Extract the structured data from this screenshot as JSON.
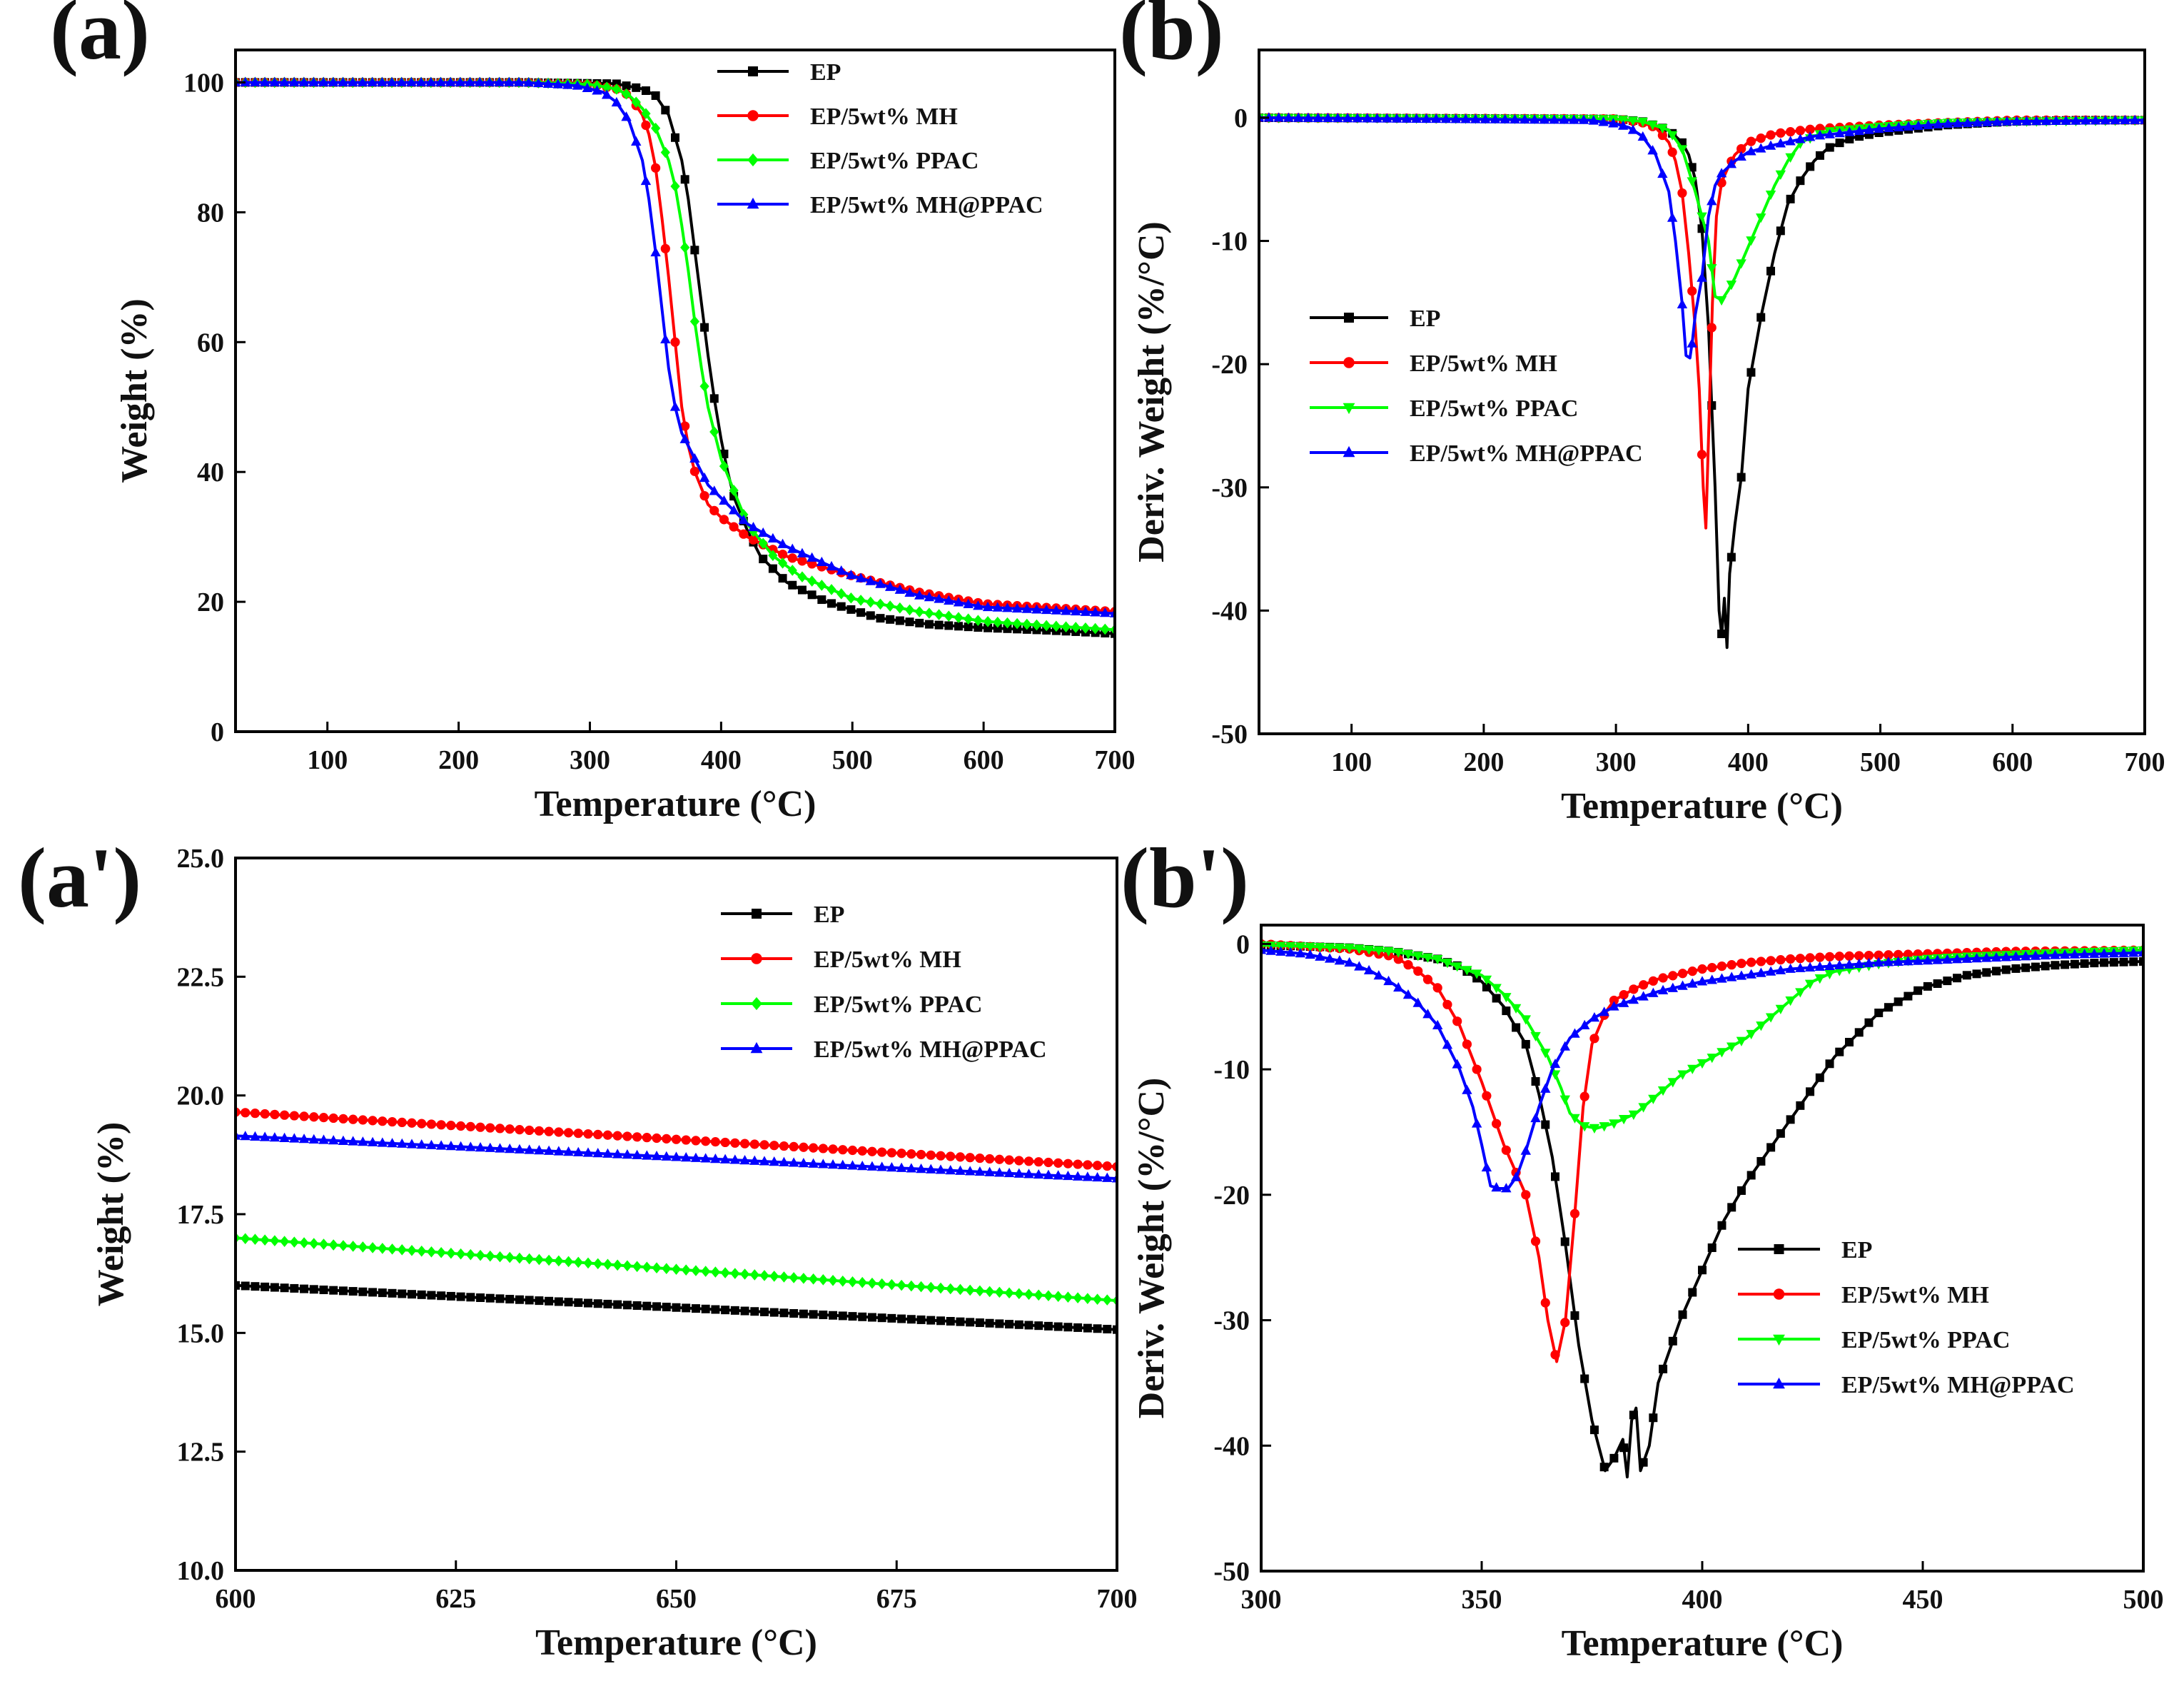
{
  "chart_data": [
    {
      "id": "a",
      "panel_label": "(a)",
      "type": "line",
      "xlabel": "Temperature (°C)",
      "ylabel": "Weight (%)",
      "xlim": [
        30,
        700
      ],
      "ylim": [
        0,
        105
      ],
      "xticks": [
        100,
        200,
        300,
        400,
        500,
        600,
        700
      ],
      "yticks": [
        0,
        20,
        40,
        60,
        80,
        100
      ],
      "legend_position": "top-right",
      "series": [
        {
          "name": "EP",
          "color": "#000000",
          "marker": "square",
          "x": [
            30,
            250,
            320,
            340,
            350,
            360,
            370,
            375,
            380,
            385,
            390,
            395,
            400,
            405,
            410,
            420,
            430,
            450,
            480,
            520,
            560,
            600,
            650,
            700
          ],
          "y": [
            100,
            100,
            99.8,
            99,
            98,
            95,
            88,
            82,
            74,
            66,
            58,
            51,
            45,
            40,
            36,
            31,
            27,
            23,
            20,
            17.5,
            16.5,
            16,
            15.6,
            15.1
          ]
        },
        {
          "name": "EP/5wt% MH",
          "color": "#ff0000",
          "marker": "circle",
          "x": [
            30,
            250,
            300,
            320,
            330,
            340,
            345,
            350,
            355,
            360,
            365,
            370,
            375,
            380,
            390,
            400,
            420,
            450,
            500,
            550,
            600,
            650,
            700
          ],
          "y": [
            100,
            100,
            99.7,
            99,
            98,
            95,
            92,
            87,
            79,
            70,
            60,
            50,
            44,
            40,
            35,
            33,
            30,
            27,
            24,
            21.5,
            19.7,
            19.1,
            18.5
          ]
        },
        {
          "name": "EP/5wt% PPAC",
          "color": "#00ff00",
          "marker": "diamond",
          "x": [
            30,
            250,
            300,
            320,
            330,
            340,
            350,
            360,
            365,
            370,
            375,
            380,
            385,
            390,
            400,
            410,
            420,
            440,
            460,
            500,
            550,
            600,
            650,
            700
          ],
          "y": [
            100,
            100,
            99.7,
            99,
            98,
            96,
            93,
            88,
            84,
            78,
            71,
            63,
            56,
            50,
            42,
            37,
            32,
            27,
            24,
            20.5,
            18.5,
            17,
            16.3,
            15.7
          ]
        },
        {
          "name": "EP/5wt% MH@PPAC",
          "color": "#0000ff",
          "marker": "triangle",
          "x": [
            30,
            250,
            290,
            310,
            320,
            330,
            340,
            345,
            350,
            355,
            360,
            365,
            370,
            380,
            390,
            400,
            420,
            450,
            500,
            550,
            600,
            650,
            700
          ],
          "y": [
            100,
            100,
            99.5,
            98.5,
            97,
            94,
            88,
            82,
            74,
            65,
            56,
            50,
            46,
            42,
            38,
            36,
            32,
            28.5,
            24,
            21,
            19.2,
            18.7,
            18.2
          ]
        }
      ]
    },
    {
      "id": "b",
      "panel_label": "(b)",
      "type": "line",
      "xlabel": "Temperature (°C)",
      "ylabel": "Deriv. Weight (%/°C)",
      "xlim": [
        30,
        700
      ],
      "ylim": [
        -50,
        5.5
      ],
      "xticks": [
        100,
        200,
        300,
        400,
        500,
        600,
        700
      ],
      "yticks": [
        -50,
        -40,
        -30,
        -20,
        -10,
        0
      ],
      "legend_position": "middle-left",
      "series": [
        {
          "name": "EP",
          "color": "#000000",
          "marker": "square",
          "x": [
            30,
            300,
            320,
            340,
            350,
            355,
            360,
            365,
            370,
            375,
            378,
            380,
            382,
            384,
            386,
            390,
            395,
            400,
            410,
            420,
            430,
            440,
            450,
            460,
            470,
            480,
            500,
            550,
            600,
            650,
            700
          ],
          "y": [
            0,
            -0.1,
            -0.3,
            -1,
            -2,
            -3,
            -5,
            -9,
            -17,
            -30,
            -40,
            -42,
            -39,
            -43,
            -37,
            -33,
            -29,
            -22,
            -16,
            -11,
            -7,
            -5,
            -3.5,
            -2.5,
            -2,
            -1.6,
            -1.2,
            -0.6,
            -0.3,
            -0.2,
            -0.2
          ]
        },
        {
          "name": "EP/5wt% MH",
          "color": "#ff0000",
          "marker": "circle",
          "x": [
            30,
            300,
            320,
            330,
            340,
            345,
            350,
            355,
            360,
            363,
            366,
            368,
            370,
            373,
            376,
            380,
            385,
            390,
            400,
            420,
            450,
            500,
            550,
            600,
            700
          ],
          "y": [
            0,
            -0.1,
            -0.4,
            -0.8,
            -2,
            -3.5,
            -6,
            -11,
            -17,
            -22,
            -30,
            -33.3,
            -26,
            -15,
            -8,
            -5.2,
            -4,
            -3,
            -2,
            -1.3,
            -0.9,
            -0.6,
            -0.4,
            -0.2,
            -0.2
          ]
        },
        {
          "name": "EP/5wt% PPAC",
          "color": "#00ff00",
          "marker": "inverted-triangle",
          "x": [
            30,
            300,
            320,
            340,
            350,
            360,
            365,
            370,
            375,
            380,
            385,
            390,
            400,
            410,
            420,
            430,
            440,
            450,
            460,
            480,
            500,
            550,
            600,
            700
          ],
          "y": [
            0,
            -0.1,
            -0.3,
            -1,
            -2.5,
            -6,
            -8,
            -10,
            -14.5,
            -14.8,
            -14,
            -13,
            -10.5,
            -8,
            -5.5,
            -3.5,
            -2,
            -1.5,
            -1.1,
            -0.9,
            -0.7,
            -0.4,
            -0.3,
            -0.2
          ]
        },
        {
          "name": "EP/5wt% MH@PPAC",
          "color": "#0000ff",
          "marker": "triangle",
          "x": [
            30,
            280,
            300,
            310,
            320,
            330,
            340,
            345,
            350,
            353,
            356,
            358,
            360,
            365,
            370,
            375,
            380,
            390,
            400,
            420,
            450,
            500,
            550,
            600,
            700
          ],
          "y": [
            0,
            -0.2,
            -0.5,
            -0.8,
            -1.5,
            -3,
            -6,
            -10,
            -15,
            -19.3,
            -19.5,
            -18,
            -16,
            -13,
            -8,
            -5.5,
            -4.5,
            -3.5,
            -2.8,
            -2.2,
            -1.5,
            -0.9,
            -0.5,
            -0.3,
            -0.2
          ]
        }
      ]
    },
    {
      "id": "a-prime",
      "panel_label": "(a')",
      "type": "line",
      "xlabel": "Temperature (°C)",
      "ylabel": "Weight (%)",
      "xlim": [
        600,
        700
      ],
      "ylim": [
        10,
        25
      ],
      "xticks": [
        600,
        625,
        650,
        675,
        700
      ],
      "yticks": [
        10.0,
        12.5,
        15.0,
        17.5,
        20.0,
        22.5,
        25.0
      ],
      "ytick_decimals": 1,
      "legend_position": "top-right",
      "series": [
        {
          "name": "EP",
          "color": "#000000",
          "marker": "square",
          "x": [
            600,
            700
          ],
          "y": [
            16.0,
            15.07
          ]
        },
        {
          "name": "EP/5wt% MH",
          "color": "#ff0000",
          "marker": "circle",
          "x": [
            600,
            700
          ],
          "y": [
            19.65,
            18.5
          ]
        },
        {
          "name": "EP/5wt% PPAC",
          "color": "#00ff00",
          "marker": "diamond",
          "x": [
            600,
            700
          ],
          "y": [
            17.0,
            15.68
          ]
        },
        {
          "name": "EP/5wt% MH@PPAC",
          "color": "#0000ff",
          "marker": "triangle",
          "x": [
            600,
            700
          ],
          "y": [
            19.15,
            18.25
          ]
        }
      ]
    },
    {
      "id": "b-prime",
      "panel_label": "(b')",
      "type": "line",
      "xlabel": "Temperature (°C)",
      "ylabel": "Deriv. Weight (%/°C)",
      "xlim": [
        300,
        500
      ],
      "ylim": [
        -50,
        1.5
      ],
      "xticks": [
        300,
        350,
        400,
        450,
        500
      ],
      "yticks": [
        -50,
        -40,
        -30,
        -20,
        -10,
        0
      ],
      "legend_position": "bottom-right",
      "series": [
        {
          "name": "EP",
          "color": "#000000",
          "marker": "square",
          "x": [
            300,
            320,
            330,
            340,
            345,
            350,
            355,
            360,
            363,
            366,
            369,
            372,
            375,
            378,
            380,
            382,
            383,
            384,
            385,
            386,
            388,
            390,
            395,
            400,
            405,
            410,
            420,
            430,
            440,
            450,
            460,
            470,
            480,
            490,
            500
          ],
          "y": [
            -0.1,
            -0.3,
            -0.6,
            -1.2,
            -1.8,
            -3,
            -5,
            -8,
            -12,
            -17,
            -24,
            -32,
            -38,
            -42,
            -41,
            -39.5,
            -42.5,
            -38,
            -37,
            -42,
            -40,
            -35,
            -30,
            -26,
            -22,
            -19,
            -14,
            -9,
            -5.5,
            -3.5,
            -2.5,
            -2,
            -1.7,
            -1.5,
            -1.4
          ]
        },
        {
          "name": "EP/5wt% MH",
          "color": "#ff0000",
          "marker": "circle",
          "x": [
            300,
            310,
            320,
            330,
            335,
            340,
            345,
            350,
            355,
            360,
            363,
            365,
            367,
            369,
            371,
            373,
            375,
            378,
            380,
            385,
            390,
            400,
            410,
            420,
            430,
            450,
            470,
            500
          ],
          "y": [
            0,
            -0.2,
            -0.4,
            -1,
            -2,
            -3.5,
            -6.5,
            -11,
            -16,
            -20,
            -25,
            -30,
            -33.3,
            -30,
            -22,
            -13,
            -8,
            -5.5,
            -4.5,
            -3.5,
            -2.8,
            -2,
            -1.5,
            -1.2,
            -1,
            -0.8,
            -0.6,
            -0.5
          ]
        },
        {
          "name": "EP/5wt% PPAC",
          "color": "#00ff00",
          "marker": "inverted-triangle",
          "x": [
            300,
            320,
            330,
            340,
            350,
            355,
            360,
            365,
            368,
            370,
            373,
            376,
            380,
            385,
            390,
            395,
            400,
            405,
            410,
            415,
            420,
            425,
            430,
            440,
            450,
            460,
            480,
            500
          ],
          "y": [
            -0.1,
            -0.3,
            -0.6,
            -1.2,
            -2.5,
            -4,
            -6,
            -9,
            -11.5,
            -13.5,
            -14.5,
            -14.7,
            -14.3,
            -13.5,
            -12,
            -10.5,
            -9.5,
            -8.5,
            -7.5,
            -6,
            -4.5,
            -3,
            -2.2,
            -1.6,
            -1.2,
            -1,
            -0.7,
            -0.5
          ]
        },
        {
          "name": "EP/5wt% MH@PPAC",
          "color": "#0000ff",
          "marker": "triangle",
          "x": [
            300,
            310,
            320,
            325,
            330,
            335,
            340,
            345,
            348,
            350,
            352,
            354,
            356,
            358,
            360,
            363,
            366,
            370,
            375,
            380,
            390,
            400,
            420,
            440,
            460,
            480,
            500
          ],
          "y": [
            -0.5,
            -0.8,
            -1.5,
            -2.2,
            -3.2,
            -4.5,
            -6.5,
            -10,
            -13,
            -16,
            -19.3,
            -19.5,
            -19.5,
            -18.5,
            -16.5,
            -13,
            -10,
            -7.5,
            -6,
            -5,
            -3.8,
            -3,
            -2,
            -1.5,
            -1.2,
            -0.9,
            -0.7
          ]
        }
      ]
    }
  ]
}
